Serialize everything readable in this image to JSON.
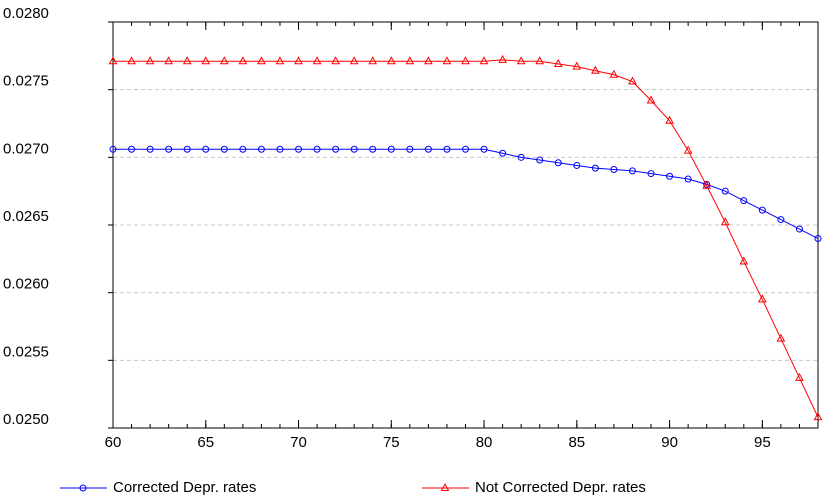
{
  "chart_data": {
    "type": "line",
    "x": [
      60,
      61,
      62,
      63,
      64,
      65,
      66,
      67,
      68,
      69,
      70,
      71,
      72,
      73,
      74,
      75,
      76,
      77,
      78,
      79,
      80,
      81,
      82,
      83,
      84,
      85,
      86,
      87,
      88,
      89,
      90,
      91,
      92,
      93,
      94,
      95,
      96,
      97,
      98
    ],
    "series": [
      {
        "name": "Corrected Depr. rates",
        "color": "#0000ff",
        "marker": "circle",
        "values": [
          0.02706,
          0.02706,
          0.02706,
          0.02706,
          0.02706,
          0.02706,
          0.02706,
          0.02706,
          0.02706,
          0.02706,
          0.02706,
          0.02706,
          0.02706,
          0.02706,
          0.02706,
          0.02706,
          0.02706,
          0.02706,
          0.02706,
          0.02706,
          0.02706,
          0.02703,
          0.027,
          0.02698,
          0.02696,
          0.02694,
          0.02692,
          0.02691,
          0.0269,
          0.02688,
          0.02686,
          0.02684,
          0.0268,
          0.02675,
          0.02668,
          0.02661,
          0.02654,
          0.02647,
          0.0264
        ]
      },
      {
        "name": "Not Corrected Depr. rates",
        "color": "#ff0000",
        "marker": "triangle",
        "values": [
          0.02771,
          0.02771,
          0.02771,
          0.02771,
          0.02771,
          0.02771,
          0.02771,
          0.02771,
          0.02771,
          0.02771,
          0.02771,
          0.02771,
          0.02771,
          0.02771,
          0.02771,
          0.02771,
          0.02771,
          0.02771,
          0.02771,
          0.02771,
          0.02771,
          0.02772,
          0.02771,
          0.02771,
          0.02769,
          0.02767,
          0.02764,
          0.02761,
          0.02756,
          0.02742,
          0.02727,
          0.02705,
          0.02679,
          0.02652,
          0.02623,
          0.02595,
          0.02566,
          0.02537,
          0.02508
        ]
      }
    ],
    "xlim": [
      60,
      98
    ],
    "xticks": [
      60,
      65,
      70,
      75,
      80,
      85,
      90,
      95
    ],
    "ylim": [
      0.025,
      0.028
    ],
    "yticks": [
      {
        "value": 0.025,
        "label": "0.0250"
      },
      {
        "value": 0.0255,
        "label": "0.0255"
      },
      {
        "value": 0.026,
        "label": "0.0260"
      },
      {
        "value": 0.0265,
        "label": "0.0265"
      },
      {
        "value": 0.027,
        "label": "0.0270"
      },
      {
        "value": 0.0275,
        "label": "0.0275"
      },
      {
        "value": 0.028,
        "label": "0.0280"
      }
    ],
    "grid": true,
    "legend": "bottom"
  }
}
